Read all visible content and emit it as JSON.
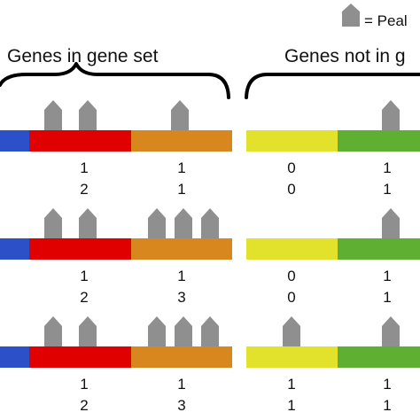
{
  "legend": {
    "text": "= Peal",
    "icon": "peak-icon"
  },
  "groups": {
    "in_set": {
      "label": "Genes in gene set"
    },
    "not_in_set": {
      "label": "Genes not in g"
    }
  },
  "colors": {
    "blue": "#2b50c8",
    "red": "#e00000",
    "orange": "#d8861e",
    "yellow": "#e2e22c",
    "green": "#5fb032",
    "peak": "#8f8f8f"
  },
  "rows": [
    {
      "peaks": {
        "red": 2,
        "orange": 1,
        "yellow": 0,
        "green": 1
      },
      "values": [
        [
          "1",
          "1",
          "0",
          "1"
        ],
        [
          "2",
          "1",
          "0",
          "1"
        ]
      ]
    },
    {
      "peaks": {
        "red": 2,
        "orange": 3,
        "yellow": 0,
        "green": 1
      },
      "values": [
        [
          "1",
          "1",
          "0",
          "1"
        ],
        [
          "2",
          "3",
          "0",
          "1"
        ]
      ]
    },
    {
      "peaks": {
        "red": 2,
        "orange": 3,
        "yellow": 1,
        "green": 1
      },
      "values": [
        [
          "1",
          "1",
          "1",
          "1"
        ],
        [
          "2",
          "3",
          "1",
          "1"
        ]
      ]
    }
  ]
}
